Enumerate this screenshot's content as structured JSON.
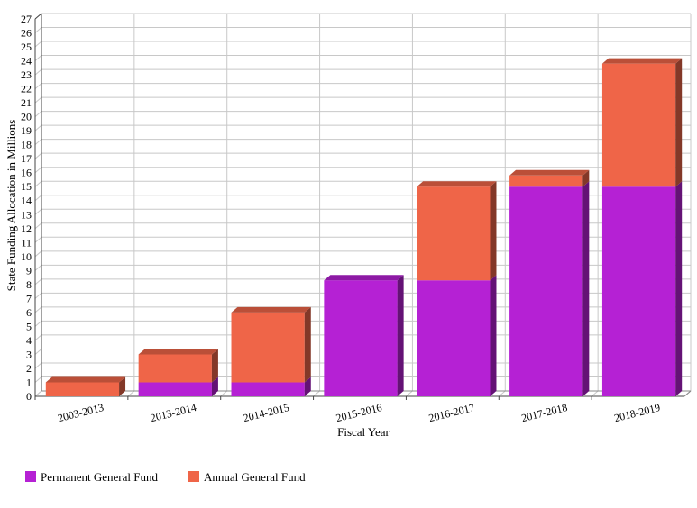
{
  "chart_data": {
    "type": "bar",
    "stacked": true,
    "three_d": true,
    "xlabel": "Fiscal Year",
    "ylabel": "State Funding Allocation in Millions",
    "ylim": [
      0,
      27
    ],
    "ytick_step": 1,
    "grid": true,
    "legend_position": "bottom-left",
    "categories": [
      "2003-2013",
      "2013-2014",
      "2014-2015",
      "2015-2016",
      "2016-2017",
      "2017-2018",
      "2018-2019"
    ],
    "series": [
      {
        "name": "Permanent General Fund",
        "color": "#b521d4",
        "values": [
          0,
          1,
          1,
          8.3,
          8.3,
          15,
          15
        ]
      },
      {
        "name": "Annual General Fund",
        "color": "#ef6548",
        "values": [
          1,
          2,
          5,
          0,
          6.7,
          0.8,
          8.8
        ]
      }
    ]
  }
}
